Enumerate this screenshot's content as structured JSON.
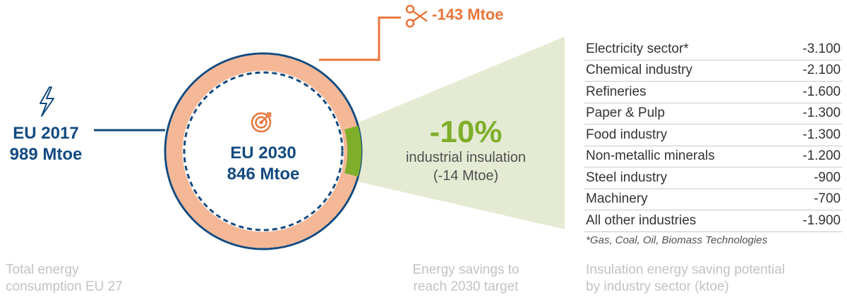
{
  "left": {
    "title": "EU 2017",
    "value": "989 Mtoe",
    "icon": "lightning-icon"
  },
  "center": {
    "title": "EU 2030",
    "value": "846 Mtoe",
    "icon": "target-icon"
  },
  "reduction": {
    "label": "-143 Mtoe",
    "icon": "scissors-icon"
  },
  "savings": {
    "percent": "-10%",
    "label": "industrial insulation",
    "detail": "(-14 Mtoe)"
  },
  "sectors": [
    {
      "name": "Electricity sector*",
      "value": "-3.100"
    },
    {
      "name": "Chemical industry",
      "value": "-2.100"
    },
    {
      "name": "Refineries",
      "value": "-1.600"
    },
    {
      "name": "Paper & Pulp",
      "value": "-1.300"
    },
    {
      "name": "Food industry",
      "value": "-1.300"
    },
    {
      "name": "Non-metallic minerals",
      "value": "-1.200"
    },
    {
      "name": "Steel industry",
      "value": "-900"
    },
    {
      "name": "Machinery",
      "value": "-700"
    },
    {
      "name": "All other industries",
      "value": "-1.900"
    }
  ],
  "footnote": "*Gas, Coal, Oil, Biomass Technologies",
  "captions": {
    "left": [
      "Total energy",
      "consumption EU 27"
    ],
    "middle": [
      "Energy savings to",
      "reach 2030 target"
    ],
    "right": [
      "Insulation energy saving potential",
      "by industry sector (ktoe)"
    ]
  },
  "colors": {
    "blue": "#134a80",
    "orange": "#e8753b",
    "ring": "#f5b896",
    "green": "#7fae2b",
    "cone": "#e4ebd2",
    "caption": "#c2c2c2"
  }
}
